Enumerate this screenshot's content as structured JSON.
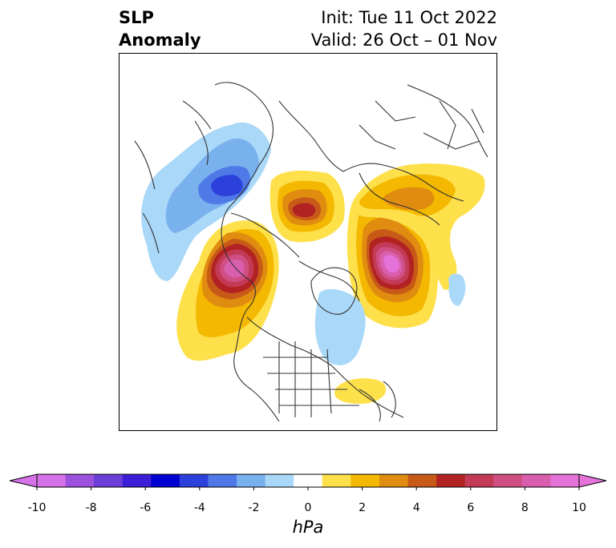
{
  "header": {
    "left_line1": "SLP",
    "left_line2": "Anomaly",
    "right_line1": "Init: Tue 11 Oct 2022",
    "right_line2": "Valid: 26 Oct – 01 Nov"
  },
  "colorbar": {
    "label": "hPa",
    "ticks": [
      "-10",
      "-8",
      "-6",
      "-4",
      "-2",
      "0",
      "2",
      "4",
      "6",
      "8",
      "10"
    ],
    "colors": [
      "#d672e8",
      "#9c52de",
      "#6b3ed8",
      "#3c1ed6",
      "#0000d0",
      "#2c40dc",
      "#4f79e6",
      "#79b1ef",
      "#aad8f8",
      "#ffffff",
      "#fde04a",
      "#f4b800",
      "#e08c10",
      "#c85a18",
      "#b22222",
      "#c23a55",
      "#cf4f82",
      "#d95fae",
      "#e472d8"
    ],
    "under_color": "#d672e8",
    "over_color": "#e472d8"
  },
  "map": {
    "projection": "north-polar-stereographic",
    "anomaly_features": [
      {
        "name": "negative-anomaly-siberia",
        "sign": "negative",
        "peak_hpa": -6
      },
      {
        "name": "positive-anomaly-kamchatka-alaska",
        "sign": "positive",
        "peak_hpa": 9
      },
      {
        "name": "positive-anomaly-scandinavia-north-atlantic",
        "sign": "positive",
        "peak_hpa": 10
      },
      {
        "name": "positive-anomaly-central-arctic",
        "sign": "positive",
        "peak_hpa": 6
      },
      {
        "name": "positive-anomaly-eurasia",
        "sign": "positive",
        "peak_hpa": 3
      },
      {
        "name": "negative-anomaly-hudson-bay-eastern-canada",
        "sign": "negative",
        "peak_hpa": -2
      },
      {
        "name": "positive-anomaly-southeast-us",
        "sign": "positive",
        "peak_hpa": 1
      },
      {
        "name": "negative-anomaly-mid-atlantic",
        "sign": "negative",
        "peak_hpa": -1
      }
    ]
  }
}
